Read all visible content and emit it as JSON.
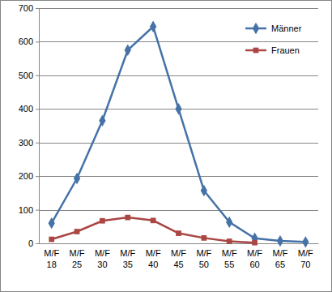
{
  "chart_data": {
    "type": "line",
    "categories": [
      "M/F 18",
      "M/F 25",
      "M/F 30",
      "M/F 35",
      "M/F 40",
      "M/F 45",
      "M/F 50",
      "M/F 55",
      "M/F 60",
      "M/F 65",
      "M/F 70"
    ],
    "series": [
      {
        "name": "Männer",
        "color": "#4572a7",
        "marker": "diamond",
        "line_style": "solid",
        "values": [
          60,
          193,
          365,
          575,
          645,
          400,
          157,
          63,
          15,
          7,
          4
        ]
      },
      {
        "name": "Frauen",
        "color": "#aa4643",
        "marker": "square",
        "line_style": "solid",
        "values": [
          12,
          35,
          67,
          77,
          68,
          30,
          16,
          6,
          2,
          null,
          null
        ]
      }
    ],
    "ylim": [
      0,
      700
    ],
    "yticks": [
      0,
      100,
      200,
      300,
      400,
      500,
      600,
      700
    ],
    "grid": true,
    "legend": "upper right"
  }
}
